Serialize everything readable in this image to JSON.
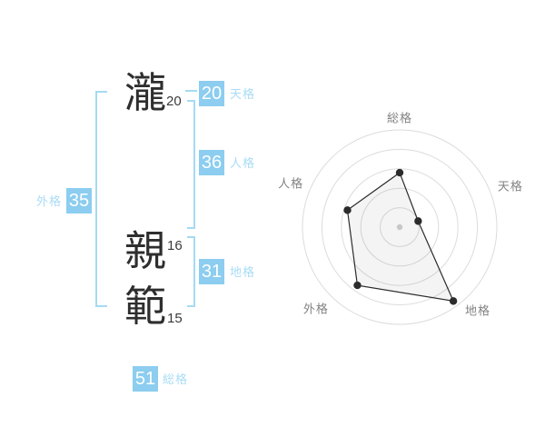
{
  "name_panel": {
    "characters": [
      {
        "char": "瀧",
        "strokes": "20"
      },
      {
        "char": "親",
        "strokes": "16"
      },
      {
        "char": "範",
        "strokes": "15"
      }
    ],
    "categories": {
      "tenkaku": {
        "value": "20",
        "label": "天格"
      },
      "jinkaku": {
        "value": "36",
        "label": "人格"
      },
      "chikaku": {
        "value": "31",
        "label": "地格"
      },
      "gaikaku": {
        "value": "35",
        "label": "外格"
      },
      "soukaku": {
        "value": "51",
        "label": "総格"
      }
    },
    "colors": {
      "box_blue": "#8ccdf0",
      "label_blue": "#a9dcf6",
      "bracket_blue": "#a5daf3"
    }
  },
  "chart_data": {
    "type": "radar",
    "axes": [
      "総格",
      "天格",
      "地格",
      "外格",
      "人格"
    ],
    "axis_values": [
      51,
      20,
      31,
      35,
      36
    ],
    "series": [
      {
        "name": "fortune-score",
        "values_fraction": [
          0.56,
          0.2,
          0.94,
          0.74,
          0.565
        ],
        "values_rings": [
          2.8,
          1.0,
          4.7,
          3.7,
          2.8
        ]
      }
    ],
    "rings": 5,
    "ring_max": 5,
    "grid": "circular",
    "legend": "none",
    "colors": {
      "ring": "#dcdcdc",
      "polygon_stroke": "#2b2b2b",
      "polygon_fill": "rgba(0,0,0,0.045)",
      "vertex_dot": "#2b2b2b",
      "center_dot": "#c8c8c8",
      "axis_label": "#828282"
    }
  }
}
